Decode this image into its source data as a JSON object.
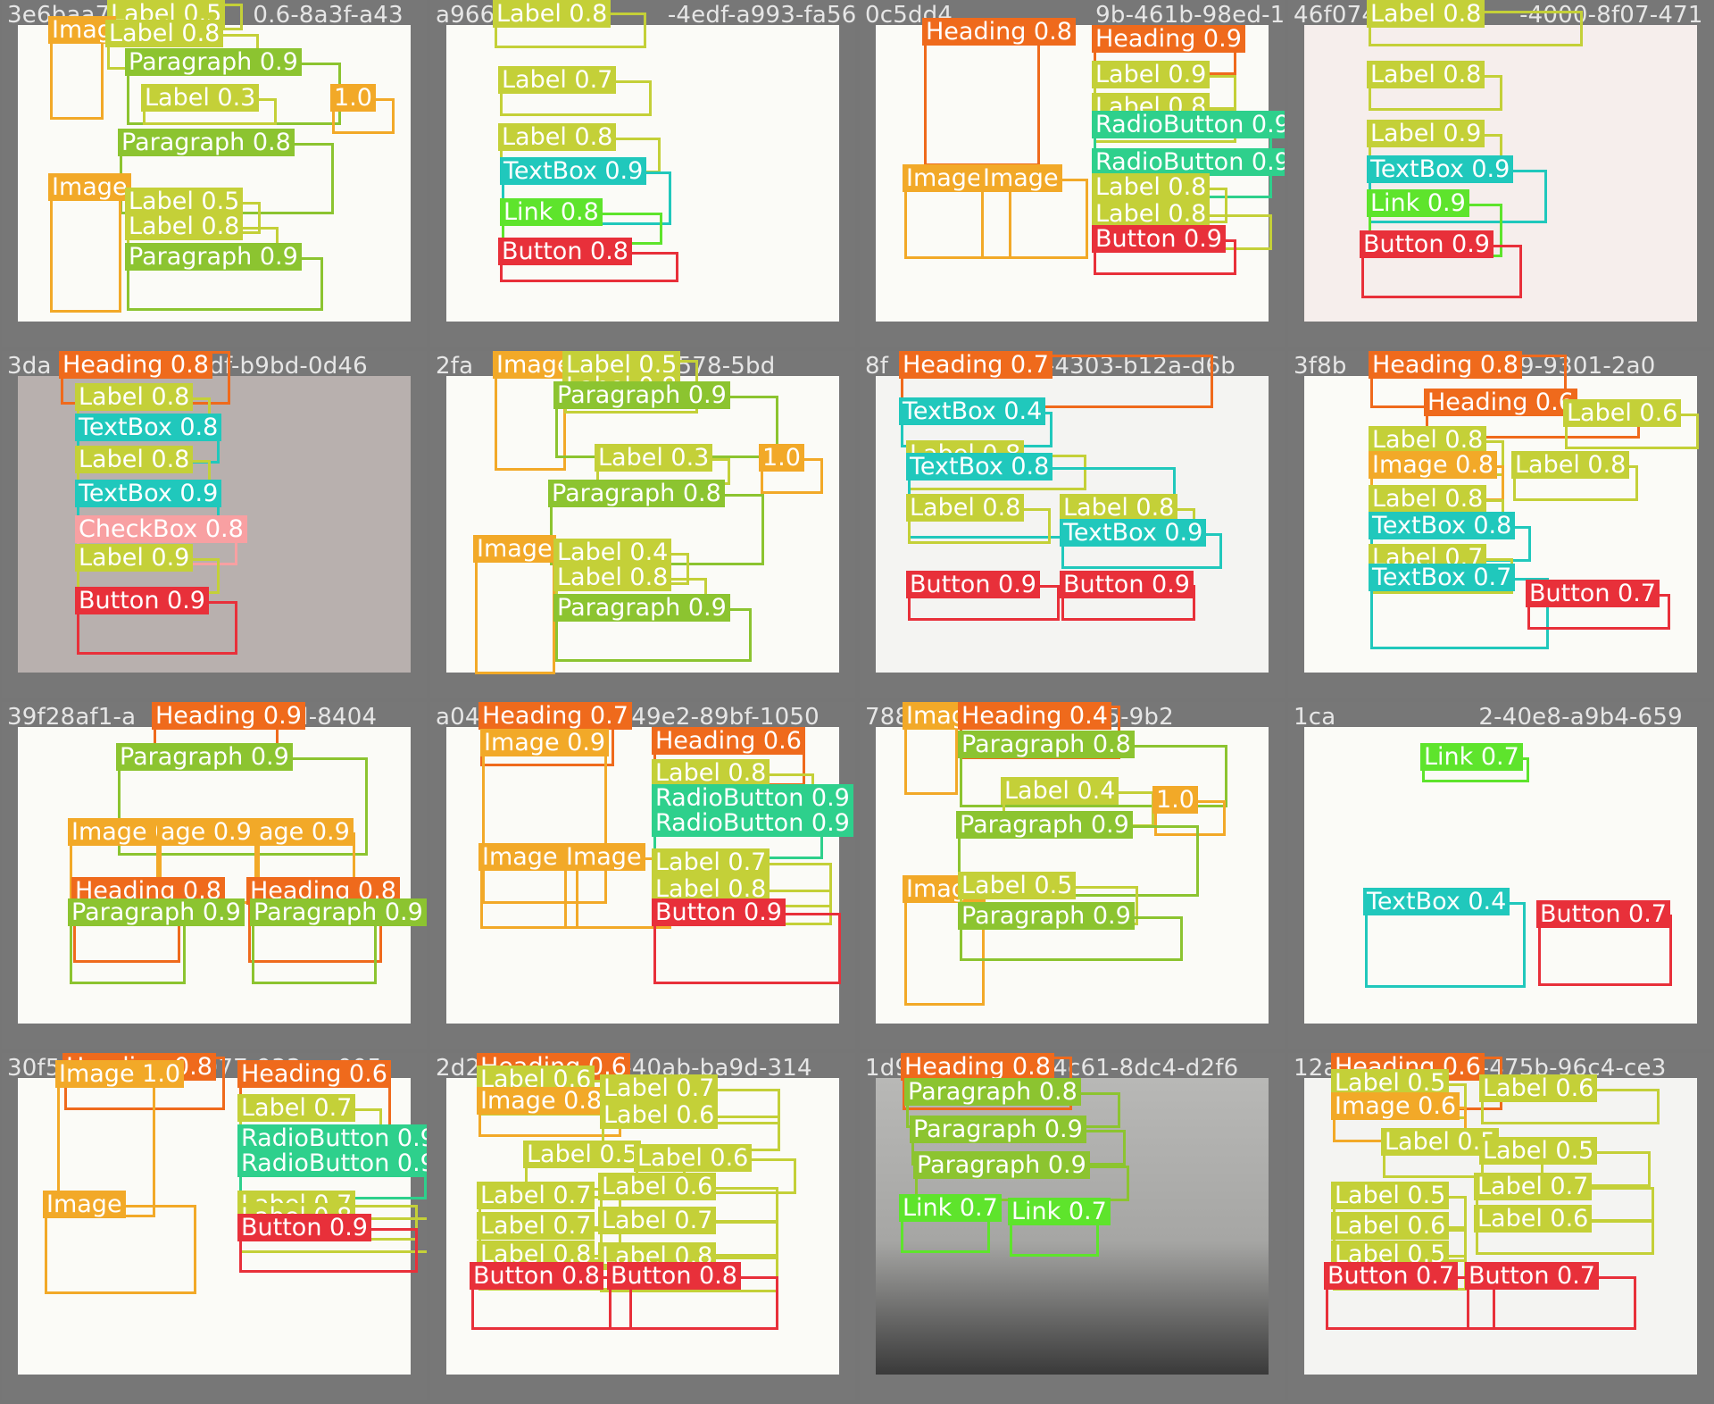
{
  "tiles": [
    {
      "id": "3e6baa7",
      "id_tail": "0.6-8a3f-a43",
      "photo": "white",
      "boxes": [
        {
          "cls": "label",
          "text": "Label 0.5"
        },
        {
          "cls": "image",
          "text": "Imag"
        },
        {
          "cls": "label",
          "text": "Label 0.8"
        },
        {
          "cls": "paragraph",
          "text": "Paragraph 0.9"
        },
        {
          "cls": "label",
          "text": "Label 0.3"
        },
        {
          "cls": "score",
          "text": "1.0"
        },
        {
          "cls": "paragraph",
          "text": "Paragraph 0.8"
        },
        {
          "cls": "image",
          "text": "Image"
        },
        {
          "cls": "label",
          "text": "Label 0.5"
        },
        {
          "cls": "label",
          "text": "Label 0.8"
        },
        {
          "cls": "paragraph",
          "text": "Paragraph 0.9"
        }
      ]
    },
    {
      "id": "a96660",
      "id_tail": "-4edf-a993-fa56",
      "photo": "white",
      "boxes": [
        {
          "cls": "label",
          "text": "Label 0.8"
        },
        {
          "cls": "label",
          "text": "Label 0.7"
        },
        {
          "cls": "label",
          "text": "Label 0.8"
        },
        {
          "cls": "textbox",
          "text": "TextBox 0.9"
        },
        {
          "cls": "link",
          "text": "Link 0.8"
        },
        {
          "cls": "button",
          "text": "Button 0.8"
        }
      ]
    },
    {
      "id": "0c5dd4",
      "id_tail": "9b-461b-98ed-1ca",
      "photo": "white",
      "boxes": [
        {
          "cls": "heading",
          "text": "Heading 0.8"
        },
        {
          "cls": "heading",
          "text": "Heading 0.9"
        },
        {
          "cls": "label",
          "text": "Label 0.9"
        },
        {
          "cls": "label",
          "text": "Label 0.8"
        },
        {
          "cls": "radiobutton",
          "text": "RadioButton 0.9"
        },
        {
          "cls": "radiobutton",
          "text": "RadioButton 0.9"
        },
        {
          "cls": "image",
          "text": "Image 0"
        },
        {
          "cls": "image",
          "text": "Image"
        },
        {
          "cls": "label",
          "text": "Label 0.8"
        },
        {
          "cls": "label",
          "text": "Label 0.8"
        },
        {
          "cls": "button",
          "text": "Button 0.9"
        }
      ]
    },
    {
      "id": "46f074",
      "id_tail": "-4000-8f07-471",
      "photo": "pink",
      "boxes": [
        {
          "cls": "label",
          "text": "Label 0.8"
        },
        {
          "cls": "label",
          "text": "Label 0.8"
        },
        {
          "cls": "label",
          "text": "Label 0.9"
        },
        {
          "cls": "textbox",
          "text": "TextBox 0.9"
        },
        {
          "cls": "link",
          "text": "Link 0.9"
        },
        {
          "cls": "button",
          "text": "Button 0.9"
        }
      ]
    },
    {
      "id": "3da",
      "id_tail": "1df-b9bd-0d46",
      "photo": "gray",
      "boxes": [
        {
          "cls": "heading",
          "text": "Heading 0.8"
        },
        {
          "cls": "label",
          "text": "Label 0.8"
        },
        {
          "cls": "textbox",
          "text": "TextBox 0.8"
        },
        {
          "cls": "label",
          "text": "Label 0.8"
        },
        {
          "cls": "textbox",
          "text": "TextBox 0.9"
        },
        {
          "cls": "checkbox",
          "text": "CheckBox 0.8"
        },
        {
          "cls": "label",
          "text": "Label 0.9"
        },
        {
          "cls": "button",
          "text": "Button 0.9"
        }
      ]
    },
    {
      "id": "2fa",
      "id_tail": "0.6-b578-5bd",
      "photo": "white",
      "boxes": [
        {
          "cls": "image",
          "text": "Image"
        },
        {
          "cls": "label",
          "text": "Label 0.5"
        },
        {
          "cls": "label",
          "text": "Label 0.8"
        },
        {
          "cls": "paragraph",
          "text": "Paragraph 0.9"
        },
        {
          "cls": "label",
          "text": "Label 0.3"
        },
        {
          "cls": "score",
          "text": "1.0"
        },
        {
          "cls": "paragraph",
          "text": "Paragraph 0.8"
        },
        {
          "cls": "image",
          "text": "Image"
        },
        {
          "cls": "label",
          "text": "Label 0.4"
        },
        {
          "cls": "label",
          "text": "Label 0.8"
        },
        {
          "cls": "paragraph",
          "text": "Paragraph 0.9"
        }
      ]
    },
    {
      "id": "8f",
      "id_tail": "g-4303-b12a-d6b",
      "photo": "faint",
      "boxes": [
        {
          "cls": "heading",
          "text": "Heading 0.7"
        },
        {
          "cls": "textbox",
          "text": "TextBox 0.4"
        },
        {
          "cls": "label",
          "text": "Label 0.8"
        },
        {
          "cls": "textbox",
          "text": "TextBox 0.8"
        },
        {
          "cls": "label",
          "text": "Label 0.8"
        },
        {
          "cls": "label",
          "text": "Label 0.8"
        },
        {
          "cls": "textbox",
          "text": "TextBox 0.9"
        },
        {
          "cls": "button",
          "text": "Button 0.9"
        },
        {
          "cls": "button",
          "text": "Button 0.9"
        }
      ]
    },
    {
      "id": "3f8b",
      "id_tail": "429-9301-2a0",
      "photo": "white",
      "boxes": [
        {
          "cls": "heading",
          "text": "Heading 0.8"
        },
        {
          "cls": "heading",
          "text": "Heading 0.6"
        },
        {
          "cls": "label",
          "text": "Label 0.6"
        },
        {
          "cls": "label",
          "text": "Label 0.8"
        },
        {
          "cls": "image",
          "text": "Image 0.8"
        },
        {
          "cls": "label",
          "text": "Label 0.8"
        },
        {
          "cls": "label",
          "text": "Label 0.8"
        },
        {
          "cls": "textbox",
          "text": "TextBox 0.8"
        },
        {
          "cls": "label",
          "text": "Label 0.7"
        },
        {
          "cls": "textbox",
          "text": "TextBox 0.7"
        },
        {
          "cls": "button",
          "text": "Button 0.7"
        }
      ]
    },
    {
      "id": "39f28af1-a",
      "id_tail": "9d-8404",
      "photo": "white",
      "boxes": [
        {
          "cls": "heading",
          "text": "Heading 0.9"
        },
        {
          "cls": "paragraph",
          "text": "Paragraph 0.9"
        },
        {
          "cls": "image",
          "text": "Image 0.9"
        },
        {
          "cls": "image",
          "text": "age 0.9"
        },
        {
          "cls": "image",
          "text": "age 0.9"
        },
        {
          "cls": "heading",
          "text": "Heading 0.8"
        },
        {
          "cls": "heading",
          "text": "Heading 0.8"
        },
        {
          "cls": "paragraph",
          "text": "Paragraph 0.9"
        },
        {
          "cls": "paragraph",
          "text": "Paragraph 0.9"
        }
      ]
    },
    {
      "id": "a04",
      "id_tail": "-49e2-89bf-1050",
      "photo": "white",
      "boxes": [
        {
          "cls": "heading",
          "text": "Heading 0.7"
        },
        {
          "cls": "image",
          "text": "Image 0.9"
        },
        {
          "cls": "heading",
          "text": "Heading 0.6"
        },
        {
          "cls": "label",
          "text": "Label 0.8"
        },
        {
          "cls": "radiobutton",
          "text": "RadioButton 0.9"
        },
        {
          "cls": "radiobutton",
          "text": "RadioButton 0.9"
        },
        {
          "cls": "image",
          "text": "Image 0"
        },
        {
          "cls": "image",
          "text": "Image"
        },
        {
          "cls": "label",
          "text": "Label 0.7"
        },
        {
          "cls": "label",
          "text": "Label 0.8"
        },
        {
          "cls": "button",
          "text": "Button 0.9"
        }
      ]
    },
    {
      "id": "788",
      "id_tail": "-add5-9b2",
      "photo": "white",
      "boxes": [
        {
          "cls": "image",
          "text": "Imag"
        },
        {
          "cls": "heading",
          "text": "Heading 0.4"
        },
        {
          "cls": "paragraph",
          "text": "Paragraph 0.8"
        },
        {
          "cls": "label",
          "text": "Label 0.4"
        },
        {
          "cls": "score",
          "text": "1.0"
        },
        {
          "cls": "paragraph",
          "text": "Paragraph 0.9"
        },
        {
          "cls": "image",
          "text": "Image"
        },
        {
          "cls": "label",
          "text": "Label 0.5"
        },
        {
          "cls": "paragraph",
          "text": "Paragraph 0.9"
        }
      ]
    },
    {
      "id": "1ca",
      "id_tail": "2-40e8-a9b4-659",
      "photo": "white",
      "boxes": [
        {
          "cls": "link",
          "text": "Link 0.7"
        },
        {
          "cls": "textbox",
          "text": "TextBox 0.4"
        },
        {
          "cls": "button",
          "text": "Button 0.7"
        }
      ]
    },
    {
      "id": "30f5",
      "id_tail": "977-933c-e005",
      "photo": "white",
      "boxes": [
        {
          "cls": "heading",
          "text": "Heading 0.8"
        },
        {
          "cls": "image",
          "text": "Image 1.0"
        },
        {
          "cls": "heading",
          "text": "Heading 0.6"
        },
        {
          "cls": "label",
          "text": "Label 0.7"
        },
        {
          "cls": "radiobutton",
          "text": "RadioButton 0.9"
        },
        {
          "cls": "radiobutton",
          "text": "RadioButton 0.9"
        },
        {
          "cls": "image",
          "text": "Image"
        },
        {
          "cls": "label",
          "text": "Label 0.7"
        },
        {
          "cls": "label",
          "text": "Label 0.8"
        },
        {
          "cls": "button",
          "text": "Button 0.9"
        }
      ]
    },
    {
      "id": "2d2",
      "id_tail": "-40ab-ba9d-314",
      "photo": "white",
      "boxes": [
        {
          "cls": "heading",
          "text": "Heading 0.6"
        },
        {
          "cls": "label",
          "text": "Label 0.6"
        },
        {
          "cls": "image",
          "text": "Image 0.8"
        },
        {
          "cls": "label",
          "text": "Label 0.7"
        },
        {
          "cls": "label",
          "text": "Label 0.6"
        },
        {
          "cls": "label",
          "text": "Label 0.5"
        },
        {
          "cls": "label",
          "text": "Label 0.6"
        },
        {
          "cls": "label",
          "text": "Label 0.7"
        },
        {
          "cls": "label",
          "text": "Label 0.7"
        },
        {
          "cls": "label",
          "text": "Label 0.8"
        },
        {
          "cls": "label",
          "text": "Label 0.6"
        },
        {
          "cls": "label",
          "text": "Label 0.7"
        },
        {
          "cls": "label",
          "text": "Label 0.8"
        },
        {
          "cls": "button",
          "text": "Button 0.8"
        },
        {
          "cls": "button",
          "text": "Button 0.8"
        }
      ]
    },
    {
      "id": "1d9",
      "id_tail": "4c61-8dc4-d2f6",
      "photo": "dark",
      "boxes": [
        {
          "cls": "heading",
          "text": "Heading 0.8"
        },
        {
          "cls": "paragraph",
          "text": "Paragraph 0.8"
        },
        {
          "cls": "paragraph",
          "text": "Paragraph 0.9"
        },
        {
          "cls": "paragraph",
          "text": "Paragraph 0.9"
        },
        {
          "cls": "link",
          "text": "Link 0.7"
        },
        {
          "cls": "link",
          "text": "Link 0.7"
        }
      ]
    },
    {
      "id": "12a",
      "id_tail": "-475b-96c4-ce3",
      "photo": "faint",
      "boxes": [
        {
          "cls": "heading",
          "text": "Heading 0.6"
        },
        {
          "cls": "label",
          "text": "Label 0.5"
        },
        {
          "cls": "image",
          "text": "Image 0.6"
        },
        {
          "cls": "label",
          "text": "Label 0.6"
        },
        {
          "cls": "label",
          "text": "Label 0.5"
        },
        {
          "cls": "label",
          "text": "Label 0.5"
        },
        {
          "cls": "label",
          "text": "Label 0.5"
        },
        {
          "cls": "label",
          "text": "Label 0.6"
        },
        {
          "cls": "label",
          "text": "Label 0.7"
        },
        {
          "cls": "label",
          "text": "Label 0.6"
        },
        {
          "cls": "label",
          "text": "Label 0.5"
        },
        {
          "cls": "button",
          "text": "Button 0.7"
        },
        {
          "cls": "button",
          "text": "Button 0.7"
        }
      ]
    }
  ]
}
